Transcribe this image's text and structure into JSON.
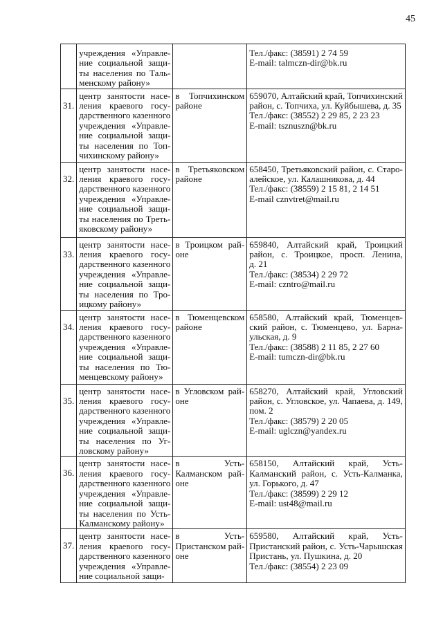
{
  "page_number": "45",
  "rows": [
    {
      "num": "",
      "org": [
        [
          "учреждения «Управле-",
          "ние социальной защи-",
          "ты населения по Таль-",
          "менскому району»"
        ]
      ],
      "loc": [],
      "addr": [
        [
          "Тел./факс: (38591) 2 74 59"
        ],
        [
          "E-mail: talmczn-dir@bk.ru"
        ]
      ]
    },
    {
      "num": "31.",
      "org": [
        [
          "центр занятости насе-",
          "ления краевого госу-",
          "дарственного казенного",
          "учреждения «Управле-",
          "ние социальной защи-",
          "ты населения по Топ-",
          "чихинскому району»"
        ]
      ],
      "loc": [
        [
          "в Топчихинском",
          "районе"
        ]
      ],
      "addr": [
        [
          "659070, Алтайский край, Топчихинский",
          "район, с. Топчиха, ул. Куйбышева, д. 35"
        ],
        [
          "Тел./факс: (38552) 2 29 85, 2 23 23"
        ],
        [
          "E-mail: tsznuszn@bk.ru"
        ]
      ]
    },
    {
      "num": "32.",
      "org": [
        [
          "центр занятости насе-",
          "ления краевого госу-",
          "дарственного казенного",
          "учреждения «Управле-",
          "ние социальной защи-",
          "ты населения по Треть-",
          "яковскому району»"
        ]
      ],
      "loc": [
        [
          "в Третьяковском",
          "районе"
        ]
      ],
      "addr": [
        [
          "658450, Третьяковский район, с. Старо-",
          "алейское, ул. Калашникова, д. 44"
        ],
        [
          "Тел./факс: (38559) 2 15 81, 2 14 51"
        ],
        [
          "E-mail cznvtret@mail.ru"
        ]
      ]
    },
    {
      "num": "33.",
      "org": [
        [
          "центр занятости насе-",
          "ления краевого госу-",
          "дарственного казенного",
          "учреждения «Управле-",
          "ние социальной защи-",
          "ты населения по Тро-",
          "ицкому району»"
        ]
      ],
      "loc": [
        [
          "в Троицком рай-",
          "оне"
        ]
      ],
      "addr": [
        [
          "659840, Алтайский край, Троицкий",
          "район, с. Троицкое, просп. Ленина,",
          "д. 21"
        ],
        [
          "Тел./факс: (38534) 2 29 72"
        ],
        [
          "E-mail: czntro@mail.ru"
        ]
      ]
    },
    {
      "num": "34.",
      "org": [
        [
          "центр занятости насе-",
          "ления краевого госу-",
          "дарственного казенного",
          "учреждения «Управле-",
          "ние социальной защи-",
          "ты населения по Тю-",
          "менцевскому району»"
        ]
      ],
      "loc": [
        [
          "в Тюменцевском",
          "районе"
        ]
      ],
      "addr": [
        [
          "658580, Алтайский край, Тюменцев-",
          "ский район, с. Тюменцево, ул. Барна-",
          "ульская, д. 9"
        ],
        [
          "Тел./факс: (38588) 2 11 85, 2 27 60"
        ],
        [
          "E-mail: tumczn-dir@bk.ru"
        ]
      ]
    },
    {
      "num": "35.",
      "org": [
        [
          "центр занятости насе-",
          "ления краевого госу-",
          "дарственного казенного",
          "учреждения «Управле-",
          "ние социальной защи-",
          "ты населения по Уг-",
          "ловскому району»"
        ]
      ],
      "loc": [
        [
          "в Угловском рай-",
          "оне"
        ]
      ],
      "addr": [
        [
          "658270, Алтайский край, Угловский",
          "район, с. Угловское, ул. Чапаева, д. 149,",
          "пом. 2"
        ],
        [
          "Тел./факс: (38579) 2 20 05"
        ],
        [
          "E-mail: uglczn@yandex.ru"
        ]
      ]
    },
    {
      "num": "36.",
      "org": [
        [
          "центр занятости насе-",
          "ления краевого госу-",
          "дарственного казенного",
          "учреждения «Управле-",
          "ние социальной защи-",
          "ты населения по Усть-",
          "Калманскому району»"
        ]
      ],
      "loc": [
        [
          "в Усть-",
          "Калманском рай-",
          "оне"
        ]
      ],
      "addr": [
        [
          "658150, Алтайский край, Усть-",
          "Калманский район, с. Усть-Калманка,",
          "ул. Горького, д. 47"
        ],
        [
          "Тел./факс: (38599) 2 29 12"
        ],
        [
          "E-mail: ust48@mail.ru"
        ]
      ]
    },
    {
      "num": "37.",
      "org": [
        [
          "центр занятости насе-",
          "ления краевого госу-",
          "дарственного казенного",
          "учреждения «Управле-",
          "ние социальной защи-"
        ]
      ],
      "loc": [
        [
          "в Усть-",
          "Пристанском рай-",
          "оне"
        ]
      ],
      "addr": [
        [
          "659580, Алтайский край, Усть-",
          "Пристанский район, с. Усть-Чарышская",
          "Пристань, ул. Пушкина, д. 20"
        ],
        [
          "Тел./факс: (38554) 2 23 09"
        ]
      ]
    }
  ]
}
